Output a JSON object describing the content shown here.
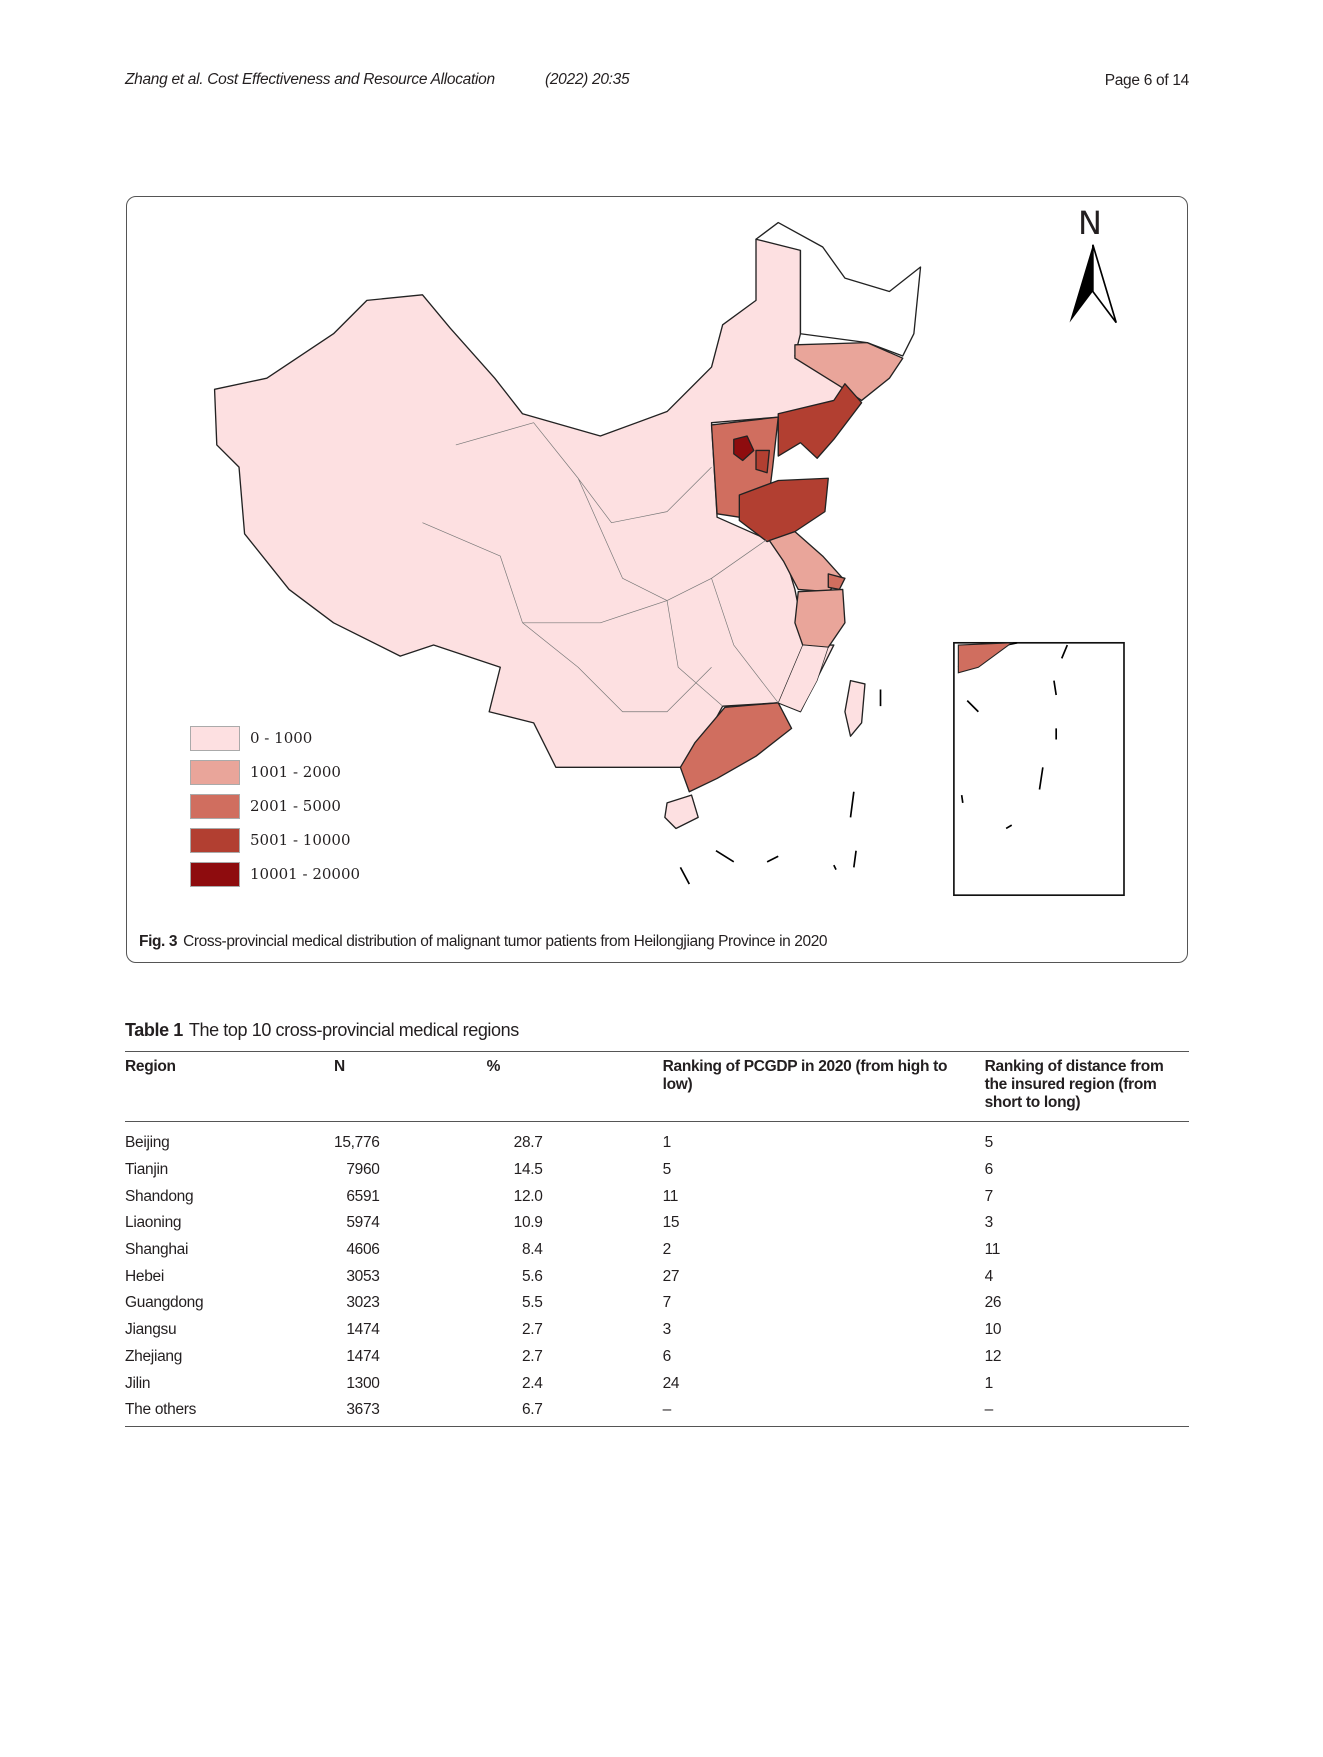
{
  "header": {
    "journal": "Zhang et al. Cost Effectiveness and Resource Allocation",
    "volume": "(2022) 20:35",
    "page": "Page 6 of 14"
  },
  "figure": {
    "label": "Fig. 3",
    "caption": "Cross-provincial medical distribution of malignant tumor patients from Heilongjiang Province in 2020",
    "north_label": "N",
    "legend": [
      {
        "label": "0 - 1000",
        "color": "#fde0e1"
      },
      {
        "label": "1001 - 2000",
        "color": "#e9a59a"
      },
      {
        "label": "2001 - 5000",
        "color": "#d06e5f"
      },
      {
        "label": "5001 - 10000",
        "color": "#b23f31"
      },
      {
        "label": "10001 - 20000",
        "color": "#8e0c0e"
      }
    ]
  },
  "table": {
    "label": "Table 1",
    "title": "The top 10 cross-provincial medical regions",
    "columns": [
      "Region",
      "N",
      "%",
      "Ranking of PCGDP in 2020 (from high to low)",
      "Ranking of distance from the insured region (from short to long)"
    ],
    "rows": [
      [
        "Beijing",
        "15,776",
        "28.7",
        "1",
        "5"
      ],
      [
        "Tianjin",
        "7960",
        "14.5",
        "5",
        "6"
      ],
      [
        "Shandong",
        "6591",
        "12.0",
        "11",
        "7"
      ],
      [
        "Liaoning",
        "5974",
        "10.9",
        "15",
        "3"
      ],
      [
        "Shanghai",
        "4606",
        "8.4",
        "2",
        "11"
      ],
      [
        "Hebei",
        "3053",
        "5.6",
        "27",
        "4"
      ],
      [
        "Guangdong",
        "3023",
        "5.5",
        "7",
        "26"
      ],
      [
        "Jiangsu",
        "1474",
        "2.7",
        "3",
        "10"
      ],
      [
        "Zhejiang",
        "1474",
        "2.7",
        "6",
        "12"
      ],
      [
        "Jilin",
        "1300",
        "2.4",
        "24",
        "1"
      ],
      [
        "The others",
        "3673",
        "6.7",
        "–",
        "–"
      ]
    ]
  }
}
